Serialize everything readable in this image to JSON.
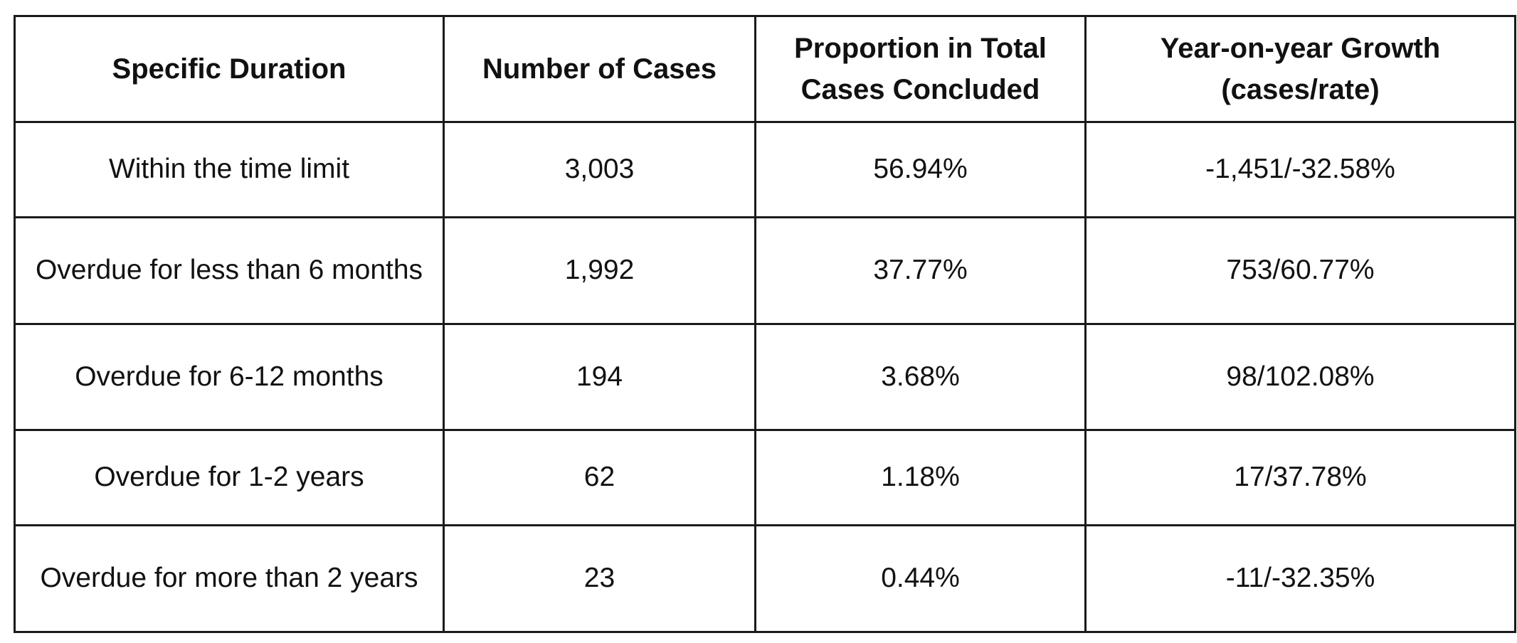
{
  "table": {
    "headers": [
      "Specific Duration",
      "Number of Cases",
      "Proportion in Total Cases Concluded",
      "Year-on-year Growth (cases/rate)"
    ],
    "rows": [
      [
        "Within the time limit",
        "3,003",
        "56.94%",
        "-1,451/-32.58%"
      ],
      [
        "Overdue for less than 6 months",
        "1,992",
        "37.77%",
        "753/60.77%"
      ],
      [
        "Overdue for 6-12 months",
        "194",
        "3.68%",
        "98/102.08%"
      ],
      [
        "Overdue for 1-2 years",
        "62",
        "1.18%",
        "17/37.78%"
      ],
      [
        "Overdue for more than 2 years",
        "23",
        "0.44%",
        "-11/-32.35%"
      ]
    ]
  }
}
